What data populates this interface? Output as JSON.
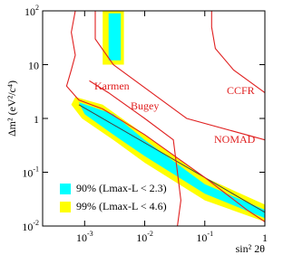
{
  "chart_data": {
    "type": "exclusion",
    "x_label": "sin² 2θ",
    "y_label": "Δm² (eV²/c⁴)",
    "x_log": true,
    "y_log": true,
    "xlim": [
      0.0002,
      1
    ],
    "ylim": [
      0.01,
      100
    ],
    "xticks": [
      {
        "value": 0.001,
        "label": "10",
        "exponent": "-3"
      },
      {
        "value": 0.01,
        "label": "10",
        "exponent": "-2"
      },
      {
        "value": 0.1,
        "label": "10",
        "exponent": "-1"
      },
      1
    ],
    "yticks": [
      {
        "value": 0.01,
        "label": "10",
        "exponent": "-2"
      },
      {
        "value": 0.1,
        "label": "10",
        "exponent": "-1"
      },
      1,
      10,
      {
        "value": 100,
        "label": "10",
        "exponent": "2"
      }
    ],
    "regions": [
      {
        "name": "99% (Lmax-L < 4.6)",
        "color": "#ffff00",
        "x": [
          0.0007,
          0.002,
          0.01,
          0.1,
          1,
          1,
          0.1,
          0.01,
          0.003,
          0.0009,
          0.0006,
          null,
          0.002,
          0.0045,
          0.0045,
          0.002
        ],
        "y": [
          2.5,
          1.8,
          0.5,
          0.08,
          0.025,
          0.012,
          0.03,
          0.15,
          0.4,
          1,
          1.8,
          null,
          100,
          100,
          10,
          10
        ]
      },
      {
        "name": "90% (Lmax-L < 2.3)",
        "color": "#00ffff",
        "x": [
          0.0008,
          0.003,
          0.01,
          0.1,
          1,
          1,
          0.1,
          0.01,
          0.003,
          0.001,
          null,
          0.0025,
          0.004,
          0.004,
          0.0025
        ],
        "y": [
          2,
          1.2,
          0.4,
          0.06,
          0.02,
          0.014,
          0.04,
          0.2,
          0.5,
          1.2,
          null,
          90,
          90,
          12,
          12
        ]
      }
    ],
    "best_fit": {
      "color": "#404040",
      "x": [
        0.0008,
        1
      ],
      "y": [
        1.8,
        0.018
      ]
    },
    "series": [
      {
        "name": "Karmen",
        "color": "#e02020",
        "x": [
          0.0007,
          0.0006,
          0.0007,
          0.0006,
          0.0005,
          0.0008,
          0.002,
          0.01,
          0.1,
          0.5,
          1
        ],
        "y": [
          100,
          40,
          15,
          8,
          4,
          2.2,
          1.5,
          0.5,
          0.08,
          0.02,
          0.012
        ]
      },
      {
        "name": "Bugey",
        "color": "#e02020",
        "x": [
          0.0012,
          0.0025,
          0.01,
          0.03,
          0.035,
          0.04,
          0.035
        ],
        "y": [
          5,
          3,
          1,
          0.4,
          0.1,
          0.03,
          0.01
        ]
      },
      {
        "name": "CCFR",
        "color": "#e02020",
        "x": [
          0.13,
          0.13,
          0.15,
          0.3,
          1
        ],
        "y": [
          100,
          50,
          20,
          8,
          3
        ]
      },
      {
        "name": "NOMAD",
        "color": "#e02020",
        "x": [
          0.0015,
          0.0015,
          0.003,
          0.05,
          1
        ],
        "y": [
          100,
          30,
          10,
          1,
          0.4
        ]
      }
    ]
  }
}
